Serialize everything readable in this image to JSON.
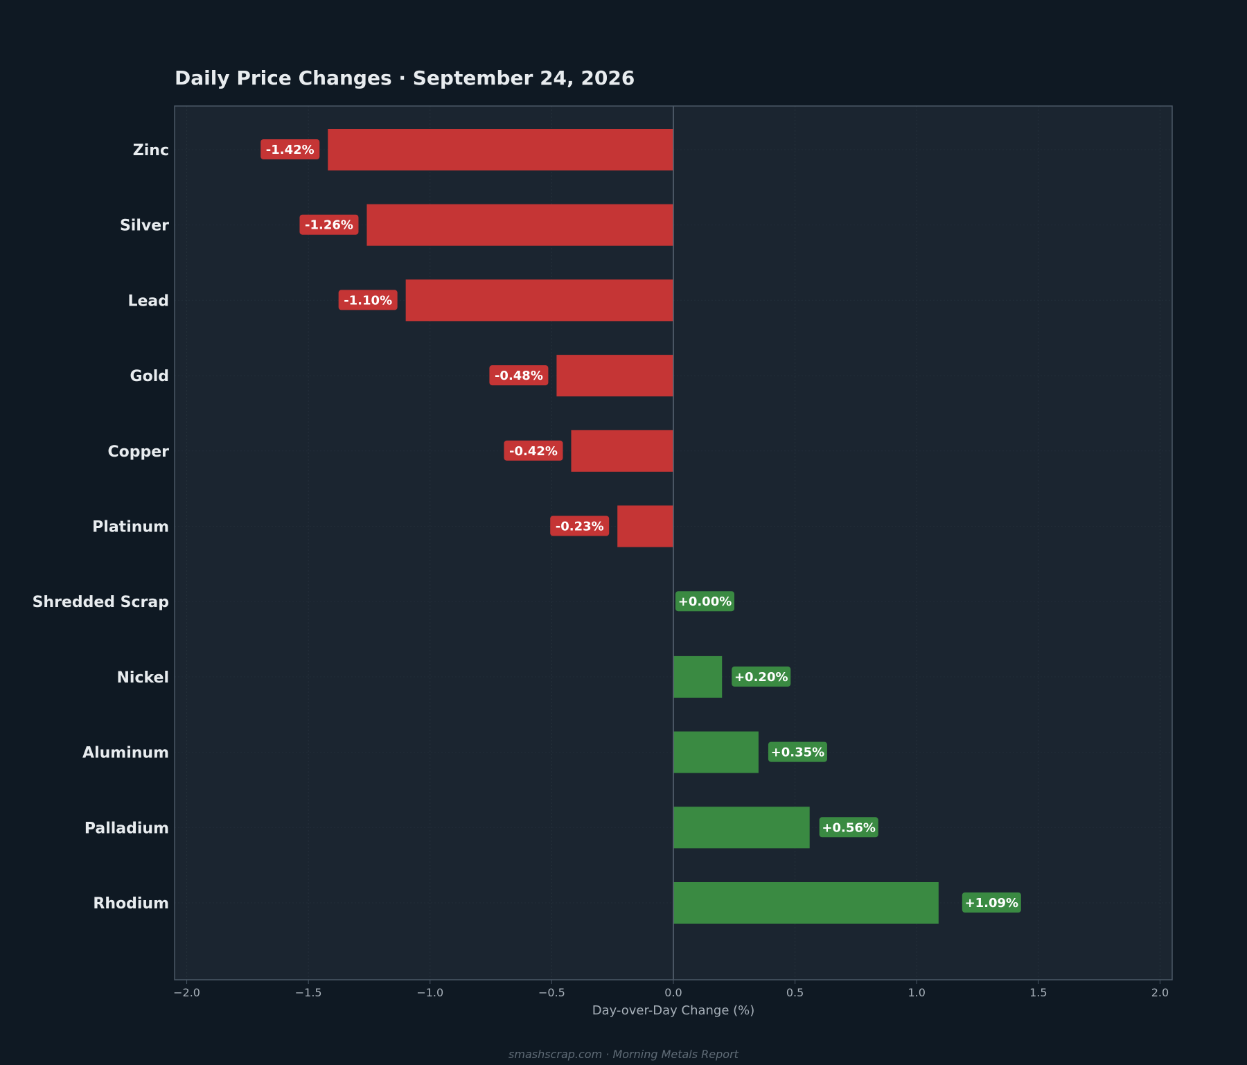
{
  "chart_data": {
    "type": "bar",
    "orientation": "horizontal",
    "title": "Daily Price Changes  ·  September 24, 2026",
    "xlabel": "Day-over-Day Change (%)",
    "ylabel": "",
    "categories": [
      "Zinc",
      "Silver",
      "Lead",
      "Gold",
      "Copper",
      "Platinum",
      "Shredded Scrap",
      "Nickel",
      "Aluminum",
      "Palladium",
      "Rhodium"
    ],
    "values": [
      -1.42,
      -1.26,
      -1.1,
      -0.48,
      -0.42,
      -0.23,
      0.0,
      0.2,
      0.35,
      0.56,
      1.09
    ],
    "data_labels": [
      "-1.42%",
      "-1.26%",
      "-1.10%",
      "-0.48%",
      "-0.42%",
      "-0.23%",
      "+0.00%",
      "+0.20%",
      "+0.35%",
      "+0.56%",
      "+1.09%"
    ],
    "xlim": [
      -2.05,
      2.05
    ],
    "xticks": [
      -2.0,
      -1.5,
      -1.0,
      -0.5,
      0.0,
      0.5,
      1.0,
      1.5,
      2.0
    ],
    "xtick_labels": [
      "−2.0",
      "−1.5",
      "−1.0",
      "−0.5",
      "0.0",
      "0.5",
      "1.0",
      "1.5",
      "2.0"
    ],
    "grid": true,
    "legend": "none"
  },
  "footer": "smashscrap.com  ·  Morning Metals Report",
  "colors": {
    "background": "#0f1923",
    "plot_background": "#1b2530",
    "negative": "#c53535",
    "positive": "#3a8a42",
    "text": "#e8ecef",
    "tick_text": "#a7b0b9",
    "axis": "#4b5866",
    "footer_text": "#5f6b76"
  }
}
